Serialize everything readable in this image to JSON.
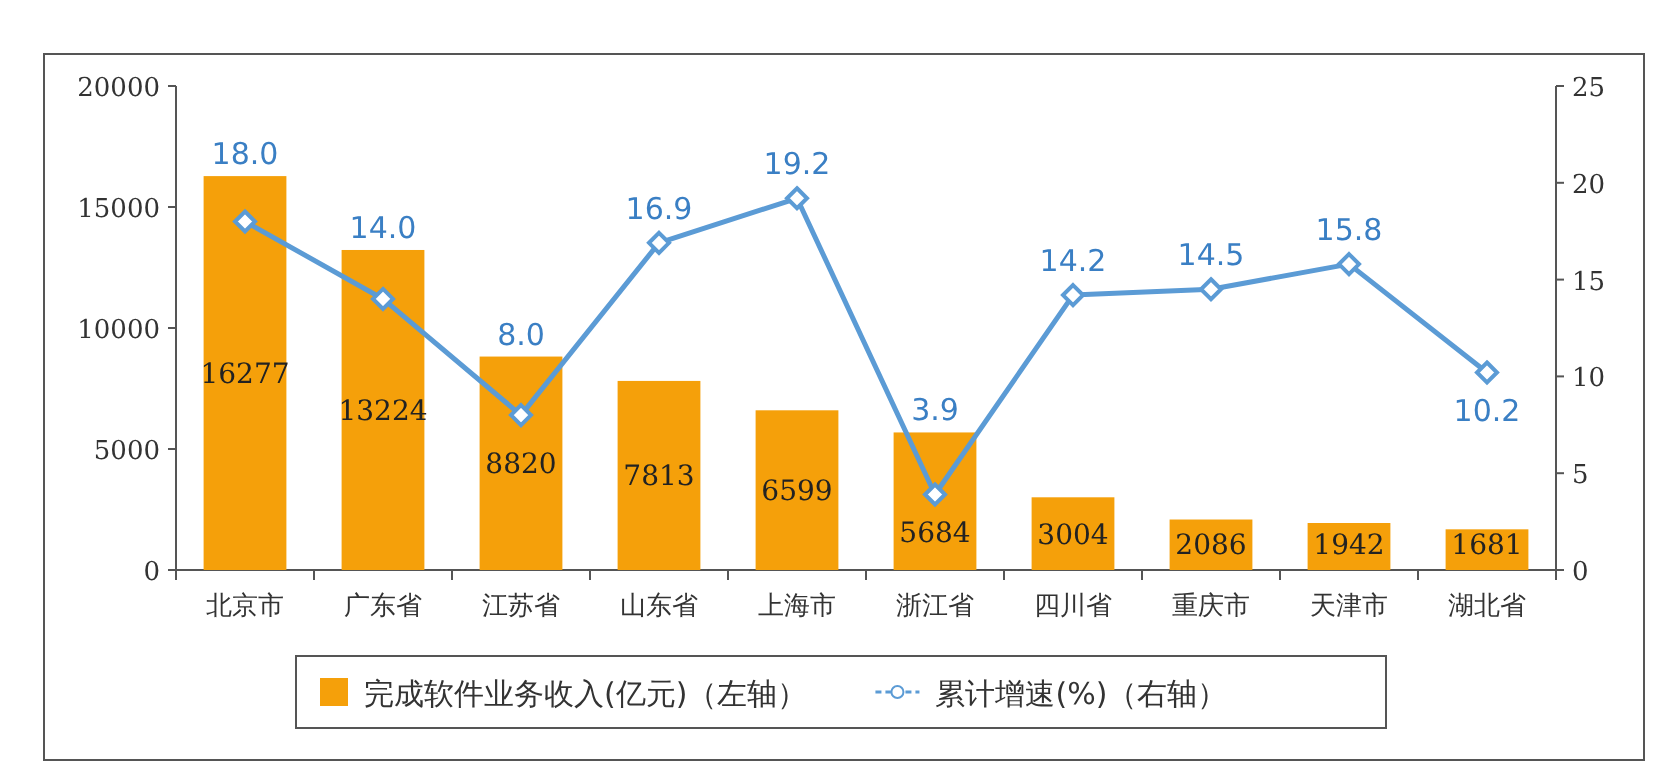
{
  "chart_data": {
    "type": "bar",
    "categories": [
      "北京市",
      "广东省",
      "江苏省",
      "山东省",
      "上海市",
      "浙江省",
      "四川省",
      "重庆市",
      "天津市",
      "湖北省"
    ],
    "series": [
      {
        "name": "完成软件业务收入(亿元)（左轴）",
        "color": "#f5a00a",
        "values": [
          16277,
          13224,
          8820,
          7813,
          6599,
          5684,
          3004,
          2086,
          1942,
          1681
        ],
        "value_labels": [
          "16277",
          "13224",
          "8820",
          "7813",
          "6599",
          "5684",
          "3004",
          "2086",
          "1942",
          "1681"
        ]
      },
      {
        "name": "累计增速(%)（右轴）",
        "type": "line",
        "axis": "y2",
        "color": "#5b9bd5",
        "marker": "diamond",
        "values": [
          18.0,
          14.0,
          8.0,
          16.9,
          19.2,
          3.9,
          14.2,
          14.5,
          15.8,
          10.2
        ],
        "value_labels": [
          "18.0",
          "14.0",
          "8.0",
          "16.9",
          "19.2",
          "3.9",
          "14.2",
          "14.5",
          "15.8",
          "10.2"
        ]
      }
    ],
    "ylim": [
      0,
      20000
    ],
    "yticks": [
      0,
      5000,
      10000,
      15000,
      20000
    ],
    "y2lim": [
      0,
      25
    ],
    "y2ticks": [
      0,
      5,
      10,
      15,
      20,
      25
    ],
    "legend": "bottom"
  }
}
